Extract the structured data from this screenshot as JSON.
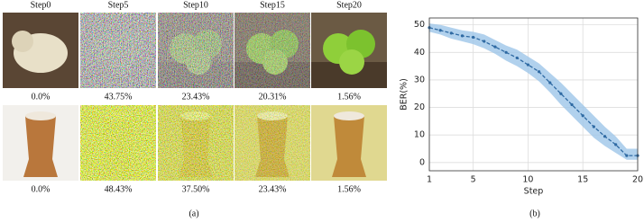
{
  "figure": {
    "columns": [
      "Step0",
      "Step5",
      "Step10",
      "Step15",
      "Step20"
    ],
    "rows": [
      {
        "captions": [
          "0.0%",
          "43.75%",
          "23.43%",
          "20.31%",
          "1.56%"
        ]
      },
      {
        "captions": [
          "0.0%",
          "48.43%",
          "37.50%",
          "23.43%",
          "1.56%"
        ]
      }
    ],
    "label_a": "(a)",
    "label_b": "(b)"
  },
  "chart_data": {
    "type": "line",
    "x_label": "Step",
    "y_label": "BER(%)",
    "xlim": [
      1,
      20
    ],
    "xticks": [
      1,
      5,
      10,
      15,
      20
    ],
    "ylim": [
      -3,
      52.5
    ],
    "yticks": [
      0,
      10,
      20,
      30,
      40,
      50
    ],
    "grid": true,
    "x": [
      1,
      2,
      3,
      4,
      5,
      6,
      7,
      8,
      9,
      10,
      11,
      12,
      13,
      14,
      15,
      16,
      17,
      18,
      19,
      20
    ],
    "series": [
      {
        "color": "#2f6aa3",
        "band_color": "#9ec5e8",
        "values": [
          49,
          48,
          47,
          46,
          45.5,
          44,
          42,
          40,
          38,
          35.5,
          33,
          29,
          25,
          21,
          17,
          13,
          9.5,
          6.5,
          2.5,
          2.5
        ],
        "lower": [
          47.5,
          46.5,
          45,
          44,
          43,
          41.5,
          39.5,
          37,
          35,
          32.5,
          29.5,
          25.5,
          21,
          17,
          13,
          9,
          6,
          3.5,
          1,
          1
        ],
        "upper": [
          50.5,
          50,
          49,
          48,
          47.5,
          46.5,
          44.5,
          42.5,
          41,
          38.5,
          36,
          32.5,
          29,
          25,
          21,
          17,
          13,
          9.5,
          5,
          5
        ]
      }
    ]
  }
}
